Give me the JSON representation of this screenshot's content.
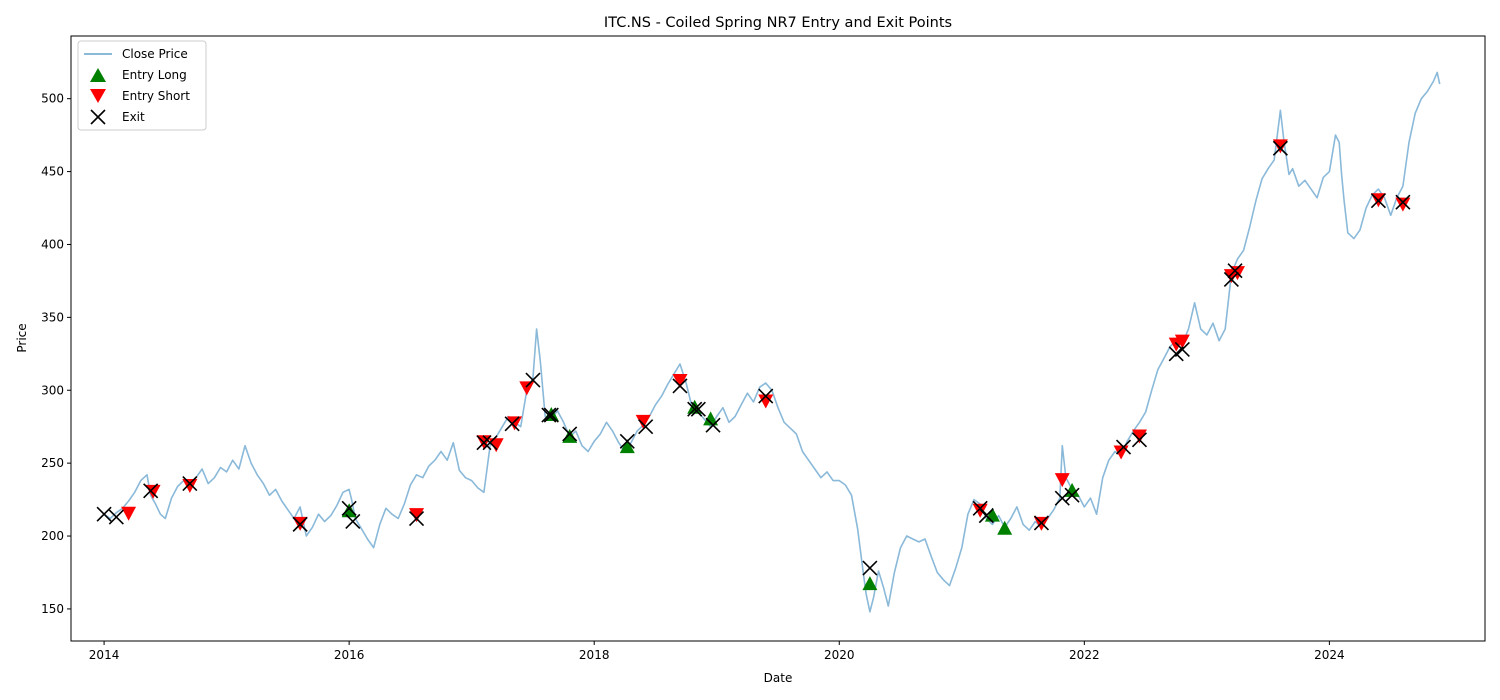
{
  "chart_data": {
    "type": "line",
    "title": "ITC.NS - Coiled Spring NR7 Entry and Exit Points",
    "xlabel": "Date",
    "ylabel": "Price",
    "xlim": [
      2013.73,
      2025.27
    ],
    "ylim": [
      128,
      543
    ],
    "x_ticks": [
      2014,
      2016,
      2018,
      2020,
      2022,
      2024
    ],
    "y_ticks": [
      150,
      200,
      250,
      300,
      350,
      400,
      450,
      500
    ],
    "grid": false,
    "legend_position": "top-left",
    "colors": {
      "close": "#8ab9d9",
      "entry_long": "#008000",
      "entry_short": "#ff0000",
      "exit": "#000000"
    },
    "series": [
      {
        "name": "Close Price",
        "kind": "line",
        "points": [
          [
            2014.0,
            215
          ],
          [
            2014.05,
            212
          ],
          [
            2014.1,
            216
          ],
          [
            2014.15,
            219
          ],
          [
            2014.2,
            224
          ],
          [
            2014.25,
            230
          ],
          [
            2014.3,
            238
          ],
          [
            2014.35,
            242
          ],
          [
            2014.38,
            228
          ],
          [
            2014.42,
            222
          ],
          [
            2014.46,
            215
          ],
          [
            2014.5,
            212
          ],
          [
            2014.55,
            226
          ],
          [
            2014.6,
            234
          ],
          [
            2014.65,
            238
          ],
          [
            2014.7,
            236
          ],
          [
            2014.75,
            240
          ],
          [
            2014.8,
            246
          ],
          [
            2014.85,
            236
          ],
          [
            2014.9,
            240
          ],
          [
            2014.95,
            247
          ],
          [
            2015.0,
            244
          ],
          [
            2015.05,
            252
          ],
          [
            2015.1,
            246
          ],
          [
            2015.15,
            262
          ],
          [
            2015.2,
            250
          ],
          [
            2015.25,
            242
          ],
          [
            2015.3,
            236
          ],
          [
            2015.35,
            228
          ],
          [
            2015.4,
            232
          ],
          [
            2015.45,
            224
          ],
          [
            2015.5,
            218
          ],
          [
            2015.55,
            212
          ],
          [
            2015.6,
            220
          ],
          [
            2015.65,
            200
          ],
          [
            2015.7,
            206
          ],
          [
            2015.75,
            215
          ],
          [
            2015.8,
            210
          ],
          [
            2015.85,
            214
          ],
          [
            2015.9,
            221
          ],
          [
            2015.95,
            230
          ],
          [
            2016.0,
            232
          ],
          [
            2016.02,
            225
          ],
          [
            2016.05,
            212
          ],
          [
            2016.1,
            205
          ],
          [
            2016.15,
            198
          ],
          [
            2016.2,
            192
          ],
          [
            2016.25,
            208
          ],
          [
            2016.3,
            219
          ],
          [
            2016.35,
            215
          ],
          [
            2016.4,
            212
          ],
          [
            2016.45,
            222
          ],
          [
            2016.5,
            235
          ],
          [
            2016.55,
            242
          ],
          [
            2016.6,
            240
          ],
          [
            2016.65,
            248
          ],
          [
            2016.7,
            252
          ],
          [
            2016.75,
            258
          ],
          [
            2016.8,
            252
          ],
          [
            2016.85,
            264
          ],
          [
            2016.9,
            245
          ],
          [
            2016.95,
            240
          ],
          [
            2017.0,
            238
          ],
          [
            2017.05,
            233
          ],
          [
            2017.1,
            230
          ],
          [
            2017.15,
            262
          ],
          [
            2017.2,
            268
          ],
          [
            2017.25,
            275
          ],
          [
            2017.3,
            282
          ],
          [
            2017.35,
            278
          ],
          [
            2017.4,
            275
          ],
          [
            2017.45,
            300
          ],
          [
            2017.5,
            308
          ],
          [
            2017.53,
            342
          ],
          [
            2017.56,
            320
          ],
          [
            2017.6,
            282
          ],
          [
            2017.65,
            280
          ],
          [
            2017.7,
            286
          ],
          [
            2017.75,
            278
          ],
          [
            2017.8,
            268
          ],
          [
            2017.85,
            272
          ],
          [
            2017.9,
            262
          ],
          [
            2017.95,
            258
          ],
          [
            2018.0,
            265
          ],
          [
            2018.05,
            270
          ],
          [
            2018.1,
            278
          ],
          [
            2018.15,
            272
          ],
          [
            2018.2,
            264
          ],
          [
            2018.25,
            258
          ],
          [
            2018.3,
            264
          ],
          [
            2018.35,
            272
          ],
          [
            2018.4,
            276
          ],
          [
            2018.45,
            282
          ],
          [
            2018.5,
            290
          ],
          [
            2018.55,
            296
          ],
          [
            2018.6,
            304
          ],
          [
            2018.65,
            311
          ],
          [
            2018.7,
            318
          ],
          [
            2018.75,
            305
          ],
          [
            2018.8,
            288
          ],
          [
            2018.85,
            285
          ],
          [
            2018.9,
            280
          ],
          [
            2018.95,
            275
          ],
          [
            2019.0,
            282
          ],
          [
            2019.05,
            288
          ],
          [
            2019.1,
            278
          ],
          [
            2019.15,
            282
          ],
          [
            2019.2,
            290
          ],
          [
            2019.25,
            298
          ],
          [
            2019.3,
            292
          ],
          [
            2019.35,
            302
          ],
          [
            2019.4,
            305
          ],
          [
            2019.45,
            300
          ],
          [
            2019.5,
            288
          ],
          [
            2019.55,
            278
          ],
          [
            2019.6,
            274
          ],
          [
            2019.65,
            270
          ],
          [
            2019.7,
            258
          ],
          [
            2019.75,
            252
          ],
          [
            2019.8,
            246
          ],
          [
            2019.85,
            240
          ],
          [
            2019.9,
            244
          ],
          [
            2019.95,
            238
          ],
          [
            2020.0,
            238
          ],
          [
            2020.05,
            235
          ],
          [
            2020.1,
            228
          ],
          [
            2020.15,
            205
          ],
          [
            2020.2,
            172
          ],
          [
            2020.22,
            160
          ],
          [
            2020.25,
            148
          ],
          [
            2020.28,
            158
          ],
          [
            2020.32,
            176
          ],
          [
            2020.36,
            165
          ],
          [
            2020.4,
            152
          ],
          [
            2020.45,
            175
          ],
          [
            2020.5,
            192
          ],
          [
            2020.55,
            200
          ],
          [
            2020.6,
            198
          ],
          [
            2020.65,
            196
          ],
          [
            2020.7,
            198
          ],
          [
            2020.75,
            186
          ],
          [
            2020.8,
            175
          ],
          [
            2020.85,
            170
          ],
          [
            2020.9,
            166
          ],
          [
            2020.95,
            178
          ],
          [
            2021.0,
            192
          ],
          [
            2021.05,
            215
          ],
          [
            2021.1,
            225
          ],
          [
            2021.15,
            222
          ],
          [
            2021.2,
            212
          ],
          [
            2021.25,
            208
          ],
          [
            2021.3,
            214
          ],
          [
            2021.35,
            206
          ],
          [
            2021.4,
            212
          ],
          [
            2021.45,
            220
          ],
          [
            2021.5,
            208
          ],
          [
            2021.55,
            204
          ],
          [
            2021.6,
            210
          ],
          [
            2021.65,
            206
          ],
          [
            2021.7,
            212
          ],
          [
            2021.75,
            218
          ],
          [
            2021.8,
            226
          ],
          [
            2021.82,
            262
          ],
          [
            2021.85,
            240
          ],
          [
            2021.9,
            232
          ],
          [
            2021.95,
            228
          ],
          [
            2022.0,
            220
          ],
          [
            2022.05,
            226
          ],
          [
            2022.1,
            215
          ],
          [
            2022.15,
            240
          ],
          [
            2022.2,
            252
          ],
          [
            2022.25,
            258
          ],
          [
            2022.3,
            255
          ],
          [
            2022.35,
            265
          ],
          [
            2022.4,
            272
          ],
          [
            2022.45,
            278
          ],
          [
            2022.5,
            285
          ],
          [
            2022.55,
            300
          ],
          [
            2022.6,
            314
          ],
          [
            2022.65,
            322
          ],
          [
            2022.7,
            330
          ],
          [
            2022.75,
            334
          ],
          [
            2022.8,
            332
          ],
          [
            2022.85,
            342
          ],
          [
            2022.9,
            360
          ],
          [
            2022.95,
            342
          ],
          [
            2023.0,
            338
          ],
          [
            2023.05,
            346
          ],
          [
            2023.1,
            334
          ],
          [
            2023.15,
            342
          ],
          [
            2023.2,
            380
          ],
          [
            2023.25,
            390
          ],
          [
            2023.3,
            396
          ],
          [
            2023.35,
            412
          ],
          [
            2023.4,
            430
          ],
          [
            2023.45,
            445
          ],
          [
            2023.5,
            452
          ],
          [
            2023.55,
            458
          ],
          [
            2023.6,
            492
          ],
          [
            2023.63,
            470
          ],
          [
            2023.67,
            448
          ],
          [
            2023.7,
            452
          ],
          [
            2023.75,
            440
          ],
          [
            2023.8,
            444
          ],
          [
            2023.85,
            438
          ],
          [
            2023.9,
            432
          ],
          [
            2023.95,
            446
          ],
          [
            2024.0,
            450
          ],
          [
            2024.05,
            475
          ],
          [
            2024.08,
            470
          ],
          [
            2024.1,
            448
          ],
          [
            2024.12,
            430
          ],
          [
            2024.15,
            408
          ],
          [
            2024.2,
            404
          ],
          [
            2024.25,
            410
          ],
          [
            2024.3,
            425
          ],
          [
            2024.35,
            434
          ],
          [
            2024.4,
            438
          ],
          [
            2024.45,
            432
          ],
          [
            2024.5,
            420
          ],
          [
            2024.55,
            432
          ],
          [
            2024.6,
            440
          ],
          [
            2024.65,
            470
          ],
          [
            2024.7,
            490
          ],
          [
            2024.75,
            500
          ],
          [
            2024.8,
            505
          ],
          [
            2024.85,
            512
          ],
          [
            2024.88,
            518
          ],
          [
            2024.9,
            510
          ]
        ]
      },
      {
        "name": "Entry Long",
        "kind": "marker",
        "marker": "triangle-up",
        "points": [
          [
            2016.0,
            217
          ],
          [
            2017.65,
            283
          ],
          [
            2017.8,
            268
          ],
          [
            2018.27,
            261
          ],
          [
            2018.82,
            288
          ],
          [
            2018.95,
            280
          ],
          [
            2020.25,
            167
          ],
          [
            2021.25,
            214
          ],
          [
            2021.35,
            205
          ],
          [
            2021.9,
            231
          ]
        ]
      },
      {
        "name": "Entry Short",
        "kind": "marker",
        "marker": "triangle-down",
        "points": [
          [
            2014.2,
            216
          ],
          [
            2014.4,
            231
          ],
          [
            2014.7,
            235
          ],
          [
            2015.6,
            209
          ],
          [
            2016.55,
            215
          ],
          [
            2017.1,
            265
          ],
          [
            2017.2,
            263
          ],
          [
            2017.35,
            278
          ],
          [
            2017.45,
            302
          ],
          [
            2018.4,
            279
          ],
          [
            2018.7,
            307
          ],
          [
            2019.4,
            293
          ],
          [
            2021.15,
            218
          ],
          [
            2021.65,
            209
          ],
          [
            2021.82,
            239
          ],
          [
            2022.3,
            258
          ],
          [
            2022.45,
            269
          ],
          [
            2022.75,
            332
          ],
          [
            2022.8,
            334
          ],
          [
            2023.2,
            379
          ],
          [
            2023.25,
            381
          ],
          [
            2023.6,
            468
          ],
          [
            2024.4,
            431
          ],
          [
            2024.6,
            428
          ]
        ]
      },
      {
        "name": "Exit",
        "kind": "marker",
        "marker": "x",
        "points": [
          [
            2014.0,
            215
          ],
          [
            2014.1,
            213
          ],
          [
            2014.38,
            231
          ],
          [
            2014.7,
            236
          ],
          [
            2015.6,
            208
          ],
          [
            2016.0,
            219
          ],
          [
            2016.03,
            210
          ],
          [
            2016.55,
            212
          ],
          [
            2017.1,
            264
          ],
          [
            2017.15,
            264
          ],
          [
            2017.33,
            277
          ],
          [
            2017.5,
            307
          ],
          [
            2017.63,
            283
          ],
          [
            2017.65,
            283
          ],
          [
            2017.8,
            270
          ],
          [
            2018.27,
            265
          ],
          [
            2018.42,
            275
          ],
          [
            2018.7,
            303
          ],
          [
            2018.82,
            287
          ],
          [
            2018.85,
            287
          ],
          [
            2018.97,
            276
          ],
          [
            2019.4,
            296
          ],
          [
            2020.25,
            178
          ],
          [
            2021.15,
            219
          ],
          [
            2021.2,
            214
          ],
          [
            2021.65,
            209
          ],
          [
            2021.82,
            226
          ],
          [
            2021.9,
            228
          ],
          [
            2022.32,
            261
          ],
          [
            2022.45,
            266
          ],
          [
            2022.75,
            325
          ],
          [
            2022.8,
            328
          ],
          [
            2023.2,
            376
          ],
          [
            2023.23,
            382
          ],
          [
            2023.6,
            466
          ],
          [
            2024.4,
            430
          ],
          [
            2024.6,
            429
          ]
        ]
      }
    ]
  }
}
